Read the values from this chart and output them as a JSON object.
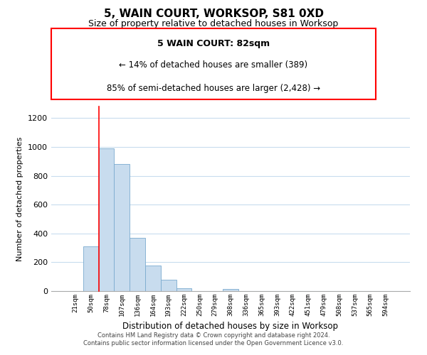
{
  "title": "5, WAIN COURT, WORKSOP, S81 0XD",
  "subtitle": "Size of property relative to detached houses in Worksop",
  "xlabel": "Distribution of detached houses by size in Worksop",
  "ylabel": "Number of detached properties",
  "bar_labels": [
    "21sqm",
    "50sqm",
    "78sqm",
    "107sqm",
    "136sqm",
    "164sqm",
    "193sqm",
    "222sqm",
    "250sqm",
    "279sqm",
    "308sqm",
    "336sqm",
    "365sqm",
    "393sqm",
    "422sqm",
    "451sqm",
    "479sqm",
    "508sqm",
    "537sqm",
    "565sqm",
    "594sqm"
  ],
  "bar_values": [
    0,
    310,
    990,
    880,
    370,
    175,
    80,
    20,
    0,
    0,
    15,
    0,
    0,
    0,
    0,
    0,
    0,
    0,
    0,
    0,
    0
  ],
  "bar_color": "#c8dcee",
  "bar_edge_color": "#7aabcf",
  "ylim": [
    0,
    1280
  ],
  "yticks": [
    0,
    200,
    400,
    600,
    800,
    1000,
    1200
  ],
  "annotation_title": "5 WAIN COURT: 82sqm",
  "annotation_line1": "← 14% of detached houses are smaller (389)",
  "annotation_line2": "85% of semi-detached houses are larger (2,428) →",
  "vline_x_index": 2,
  "footer_line1": "Contains HM Land Registry data © Crown copyright and database right 2024.",
  "footer_line2": "Contains public sector information licensed under the Open Government Licence v3.0.",
  "background_color": "#ffffff",
  "grid_color": "#c8dcee"
}
